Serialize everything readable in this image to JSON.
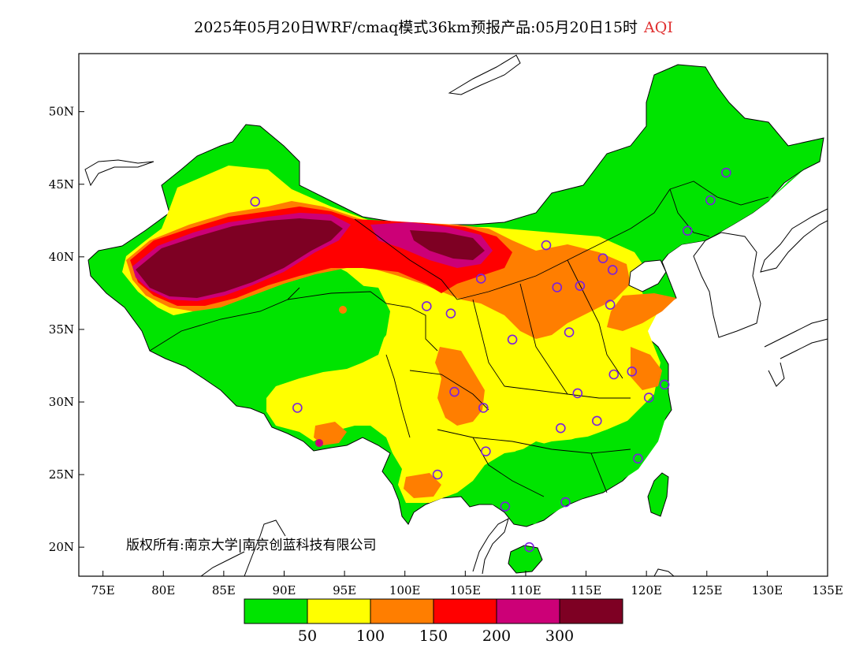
{
  "title": {
    "main": "2025年05月20日WRF/cmaq模式36km预报产品:05月20日15时",
    "variable": "AQI"
  },
  "axes": {
    "lat_labels": [
      "50N",
      "45N",
      "40N",
      "35N",
      "30N",
      "25N",
      "20N"
    ],
    "lon_labels": [
      "75E",
      "80E",
      "85E",
      "90E",
      "95E",
      "100E",
      "105E",
      "110E",
      "115E",
      "120E",
      "125E",
      "130E",
      "135E"
    ],
    "lat_range": [
      18,
      54
    ],
    "lon_range": [
      73,
      135
    ]
  },
  "copyright": "版权所有:南京大学|南京创蓝科技有限公司",
  "legend": {
    "colors": [
      "#00e400",
      "#ffff00",
      "#ff7e00",
      "#ff0000",
      "#cc0077",
      "#7e0023"
    ],
    "labels": [
      "50",
      "100",
      "150",
      "200",
      "300"
    ]
  },
  "stations": [
    {
      "lon": 87.6,
      "lat": 43.8
    },
    {
      "lon": 126.6,
      "lat": 45.8
    },
    {
      "lon": 125.3,
      "lat": 43.9
    },
    {
      "lon": 123.4,
      "lat": 41.8
    },
    {
      "lon": 111.7,
      "lat": 40.8
    },
    {
      "lon": 116.4,
      "lat": 39.9
    },
    {
      "lon": 117.2,
      "lat": 39.1
    },
    {
      "lon": 106.3,
      "lat": 38.5
    },
    {
      "lon": 112.6,
      "lat": 37.9
    },
    {
      "lon": 114.5,
      "lat": 38.0
    },
    {
      "lon": 101.8,
      "lat": 36.6
    },
    {
      "lon": 117.0,
      "lat": 36.7
    },
    {
      "lon": 103.8,
      "lat": 36.1
    },
    {
      "lon": 113.6,
      "lat": 34.8
    },
    {
      "lon": 108.9,
      "lat": 34.3
    },
    {
      "lon": 118.8,
      "lat": 32.1
    },
    {
      "lon": 117.3,
      "lat": 31.9
    },
    {
      "lon": 104.1,
      "lat": 30.7
    },
    {
      "lon": 106.5,
      "lat": 29.6
    },
    {
      "lon": 114.3,
      "lat": 30.6
    },
    {
      "lon": 120.2,
      "lat": 30.3
    },
    {
      "lon": 121.5,
      "lat": 31.2
    },
    {
      "lon": 91.1,
      "lat": 29.6
    },
    {
      "lon": 112.9,
      "lat": 28.2
    },
    {
      "lon": 115.9,
      "lat": 28.7
    },
    {
      "lon": 106.7,
      "lat": 26.6
    },
    {
      "lon": 119.3,
      "lat": 26.1
    },
    {
      "lon": 102.7,
      "lat": 25.0
    },
    {
      "lon": 108.3,
      "lat": 22.8
    },
    {
      "lon": 113.3,
      "lat": 23.1
    },
    {
      "lon": 110.3,
      "lat": 20.0
    }
  ]
}
